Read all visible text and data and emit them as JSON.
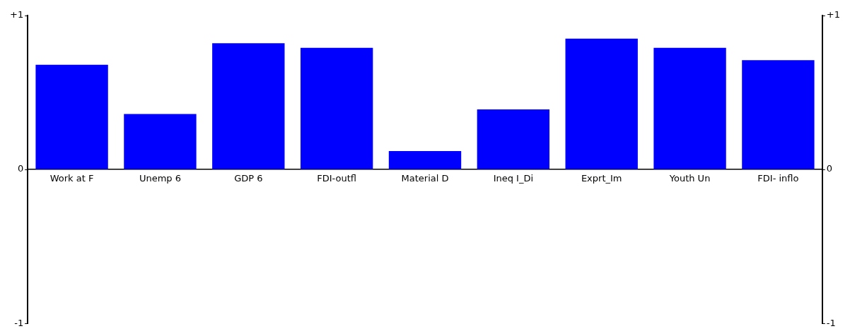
{
  "chart_data": {
    "type": "bar",
    "categories": [
      "Work at F",
      "Unemp 6",
      "GDP 6",
      "FDI-outfl",
      "Material D",
      "Ineq I_Di",
      "Exprt_Im",
      "Youth Un",
      "FDI- inflo"
    ],
    "values": [
      0.68,
      0.36,
      0.82,
      0.79,
      0.12,
      0.39,
      0.85,
      0.79,
      0.71
    ],
    "color": "#0000ff",
    "ylim": [
      -1,
      1
    ],
    "yticks": [
      {
        "value": 1,
        "label": "+1"
      },
      0,
      -1
    ],
    "y2lim": [
      -1,
      1
    ],
    "y2ticks": [
      {
        "value": 1,
        "label": "+1"
      },
      0,
      -1
    ],
    "grid": false,
    "legend": false
  }
}
